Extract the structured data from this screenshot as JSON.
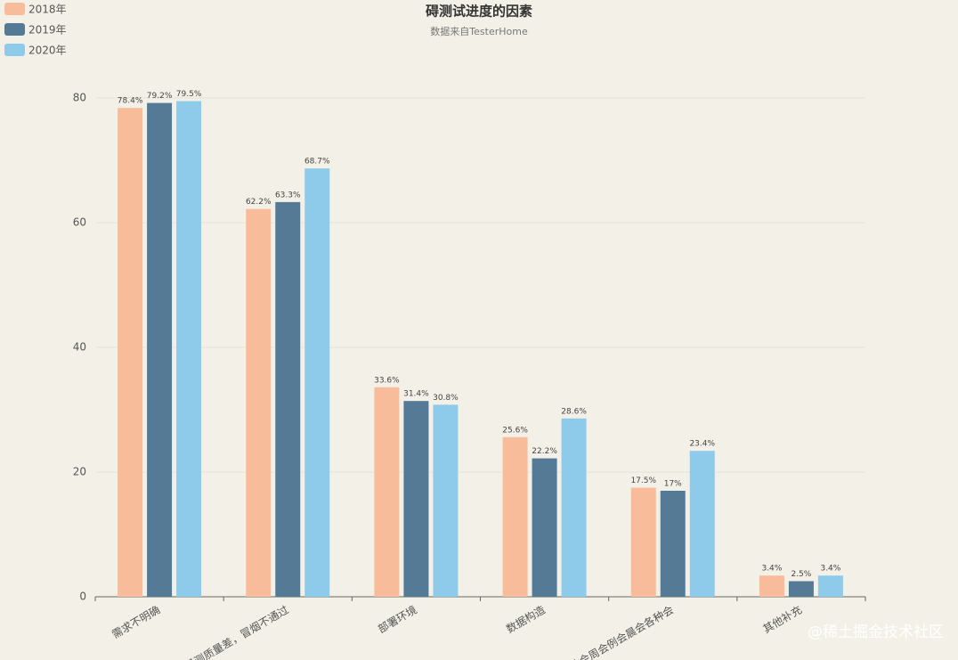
{
  "chart_data": {
    "type": "bar",
    "title": "碍测试进度的因素",
    "subtitle": "数据来自TesterHome",
    "categories": [
      "需求不明确",
      "提测质量差，冒烟不通过",
      "部署环境",
      "数据构造",
      "站会周会例会晨会各种会",
      "其他补充"
    ],
    "series": [
      {
        "name": "2018年",
        "color": "#f9bc9a",
        "values": [
          78.4,
          62.2,
          33.6,
          25.6,
          17.5,
          3.4
        ],
        "value_labels": [
          "78.4%",
          "62.2%",
          "33.6%",
          "25.6%",
          "17.5%",
          "3.4%"
        ]
      },
      {
        "name": "2019年",
        "color": "#557a95",
        "values": [
          79.2,
          63.3,
          31.4,
          22.2,
          17,
          2.5
        ],
        "value_labels": [
          "79.2%",
          "63.3%",
          "31.4%",
          "22.2%",
          "17%",
          "2.5%"
        ]
      },
      {
        "name": "2020年",
        "color": "#8ecbea",
        "values": [
          79.5,
          68.7,
          30.8,
          28.6,
          23.4,
          3.4
        ],
        "value_labels": [
          "79.5%",
          "68.7%",
          "30.8%",
          "28.6%",
          "23.4%",
          "3.4%"
        ]
      }
    ],
    "ylim": [
      0,
      80
    ],
    "yticks": [
      0,
      20,
      40,
      60,
      80
    ],
    "grid": true,
    "legend": "top-left",
    "watermark": "@稀土掘金技术社区"
  }
}
